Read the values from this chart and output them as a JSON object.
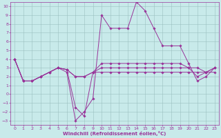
{
  "title": "",
  "xlabel": "Windchill (Refroidissement éolien,°C)",
  "ylabel": "",
  "xlim": [
    -0.5,
    23.5
  ],
  "ylim": [
    -3.5,
    10.5
  ],
  "xticks": [
    0,
    1,
    2,
    3,
    4,
    5,
    6,
    7,
    8,
    9,
    10,
    11,
    12,
    13,
    14,
    15,
    16,
    17,
    18,
    19,
    20,
    21,
    22,
    23
  ],
  "yticks": [
    -3,
    -2,
    -1,
    0,
    1,
    2,
    3,
    4,
    5,
    6,
    7,
    8,
    9,
    10
  ],
  "bg_color": "#c8eaea",
  "grid_color": "#9bbfbf",
  "line_color": "#993399",
  "lines": [
    [
      4.0,
      1.5,
      1.5,
      2.0,
      2.5,
      3.0,
      2.5,
      -3.0,
      -2.0,
      -0.5,
      9.0,
      7.5,
      7.5,
      7.5,
      10.5,
      9.5,
      7.5,
      5.5,
      5.5,
      5.5,
      3.5,
      1.5,
      2.0,
      3.0
    ],
    [
      4.0,
      1.5,
      1.5,
      2.0,
      2.5,
      3.0,
      2.8,
      -1.5,
      -2.5,
      2.5,
      3.0,
      3.0,
      3.0,
      3.0,
      3.0,
      3.0,
      3.0,
      3.0,
      3.0,
      3.0,
      3.0,
      3.0,
      2.5,
      3.0
    ],
    [
      4.0,
      1.5,
      1.5,
      2.0,
      2.5,
      3.0,
      2.8,
      2.0,
      2.0,
      2.5,
      2.5,
      2.5,
      2.5,
      2.5,
      2.5,
      2.5,
      2.5,
      2.5,
      2.5,
      2.5,
      2.5,
      2.5,
      2.5,
      2.5
    ],
    [
      4.0,
      1.5,
      1.5,
      2.0,
      2.5,
      3.0,
      2.8,
      2.0,
      2.0,
      2.5,
      3.5,
      3.5,
      3.5,
      3.5,
      3.5,
      3.5,
      3.5,
      3.5,
      3.5,
      3.5,
      3.0,
      2.0,
      2.5,
      3.0
    ]
  ],
  "tick_fontsize": 4.5,
  "xlabel_fontsize": 5.0,
  "marker_size": 1.8,
  "linewidth": 0.7
}
